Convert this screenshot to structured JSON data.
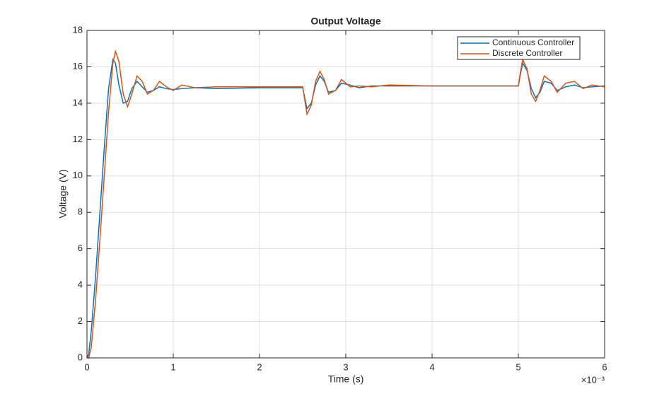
{
  "chart_data": {
    "type": "line",
    "title": "Output Voltage",
    "x_label": "Time (s)",
    "y_label": "Voltage (V)",
    "x_multiplier": "×10⁻³",
    "x": [
      0,
      0.02,
      0.05,
      0.1,
      0.15,
      0.2,
      0.25,
      0.3,
      0.33,
      0.37,
      0.42,
      0.47,
      0.52,
      0.58,
      0.64,
      0.7,
      0.77,
      0.84,
      0.92,
      1.0,
      1.1,
      1.25,
      1.5,
      2.0,
      2.49,
      2.5,
      2.55,
      2.6,
      2.65,
      2.7,
      2.75,
      2.8,
      2.88,
      2.95,
      3.05,
      3.15,
      3.3,
      3.5,
      4.0,
      4.5,
      5.0,
      5.02,
      5.05,
      5.1,
      5.15,
      5.2,
      5.25,
      5.3,
      5.38,
      5.45,
      5.55,
      5.65,
      5.75,
      5.85,
      6.0
    ],
    "series": [
      {
        "name": "Continuous Controller",
        "color": "#0072bd",
        "values": [
          0,
          0.2,
          1.5,
          4.5,
          8,
          11.5,
          14.8,
          16.4,
          16.2,
          15.0,
          14.0,
          14.1,
          14.8,
          15.2,
          14.9,
          14.6,
          14.7,
          14.9,
          14.8,
          14.75,
          14.8,
          14.85,
          14.8,
          14.85,
          14.85,
          14.85,
          13.7,
          14.0,
          15.0,
          15.5,
          15.2,
          14.6,
          14.7,
          15.1,
          15.0,
          14.85,
          14.95,
          14.95,
          14.95,
          14.95,
          14.95,
          15.5,
          16.2,
          15.8,
          14.8,
          14.3,
          14.6,
          15.2,
          15.1,
          14.7,
          14.9,
          15.0,
          14.85,
          14.9,
          14.95
        ]
      },
      {
        "name": "Discrete Controller",
        "color": "#d95319",
        "values": [
          0,
          0,
          0.6,
          3.2,
          6.5,
          10,
          13.5,
          16.2,
          16.85,
          16.3,
          14.5,
          13.8,
          14.5,
          15.5,
          15.2,
          14.5,
          14.7,
          15.2,
          14.9,
          14.7,
          15.0,
          14.85,
          14.9,
          14.9,
          14.9,
          14.9,
          13.4,
          13.9,
          15.2,
          15.75,
          15.3,
          14.5,
          14.7,
          15.3,
          14.9,
          14.95,
          14.9,
          15.0,
          14.95,
          14.95,
          14.95,
          15.6,
          16.4,
          15.9,
          14.5,
          14.1,
          14.7,
          15.5,
          15.2,
          14.6,
          15.1,
          15.2,
          14.8,
          15.0,
          14.9
        ]
      }
    ],
    "xlim": [
      0,
      6
    ],
    "xticks": [
      0,
      1,
      2,
      3,
      4,
      5,
      6
    ],
    "ylim": [
      0,
      18
    ],
    "yticks": [
      0,
      2,
      4,
      6,
      8,
      10,
      12,
      14,
      16,
      18
    ],
    "grid": true,
    "legend": "top-right"
  }
}
